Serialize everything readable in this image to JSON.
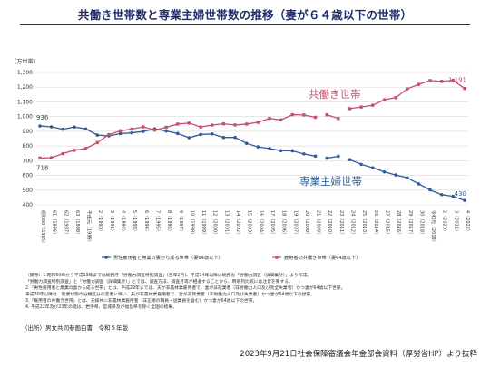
{
  "page": {
    "title": "共働き世帯数と専業主婦世帯数の推移（妻が６４歳以下の世帯）",
    "notes": [
      "（備考）1.昭和60年から平成13年までは総務庁「労働力調査特別調査」(各年2月)、平成14年以降は総務省「労働力調査（詳細集計）」より作成。",
      "「労働力調査特別調査」と「労働力調査（詳細集計）」とでは、調査方法、調査月等が相違することから、時系列比較には注意を要する。",
      "2.「男性雇用者と無業の妻から成る世帯」とは、平成29年までは、夫が非農林業雇用者で、妻が非就業者（非労働力人口及び完全失業者）かつ妻が64歳以下世帯。",
      "平成30年以降は、就業状態の分類区分の変更に伴い、夫が非農林業雇用者で、妻が非就業者（非労働力人口及び失業者）かつ妻が64歳以下の世帯。",
      "3.「雇用者の共働き世帯」とは、夫婦共に非農林業雇用者（非正規の職員・従業員を含む）かつ妻が64歳以下の世帯。",
      "4. 平成22年及び23年の値は、岩手県、宮城県及び福島県を除く全国の結果。"
    ],
    "source": "（出所）男女共同参画白書　令和５年版",
    "footer": "2023年9月21日社会保障審議会年金部会資料（厚労省HP）より抜粋"
  },
  "chart_data": {
    "type": "line",
    "unit_label": "（万世帯）",
    "ylim": [
      400,
      1300
    ],
    "yticks": [
      400,
      500,
      600,
      700,
      800,
      900,
      1000,
      1100,
      1200,
      1300
    ],
    "grid": true,
    "legend_position": "bottom",
    "categories": [
      "昭和60（1985）",
      "61（1986）",
      "62（1987）",
      "63（1988）",
      "平成元（1989）",
      "2（1990）",
      "3（1991）",
      "4（1992）",
      "5（1993）",
      "6（1994）",
      "7（1995）",
      "8（1996）",
      "9（1997）",
      "10（1998）",
      "11（1999）",
      "12（2000）",
      "13（2001）",
      "14（2002）",
      "15（2003）",
      "16（2004）",
      "17（2005）",
      "18（2006）",
      "19（2007）",
      "20（2008）",
      "21（2009）",
      "22（2010）",
      "23（2011）",
      "24（2012）",
      "25（2013）",
      "26（2014）",
      "27（2015）",
      "28（2016）",
      "29（2017）",
      "30（2018）",
      "令和元（2019）",
      "2（2020）",
      "3（2021）",
      "4（2022）"
    ],
    "series": [
      {
        "name": "男性雇用者と無業の妻から成る世帯（妻64歳以下）",
        "short_label": "専業主婦世帯",
        "color": "#2e5c9c",
        "marker": "circle",
        "values": [
          936,
          930,
          914,
          929,
          916,
          874,
          869,
          884,
          889,
          899,
          917,
          902,
          885,
          856,
          878,
          882,
          858,
          858,
          818,
          794,
          783,
          768,
          767,
          746,
          731,
          717,
          730,
          707,
          675,
          652,
          624,
          603,
          584,
          542,
          501,
          469,
          458,
          430
        ],
        "gaps_after": [
          24,
          26
        ],
        "first_value_label": "936",
        "last_value_label": "430"
      },
      {
        "name": "雇用者の共働き世帯（妻64歳以下）",
        "short_label": "共働き世帯",
        "color": "#c8506e",
        "marker": "square",
        "values": [
          718,
          720,
          748,
          771,
          783,
          823,
          877,
          903,
          915,
          930,
          908,
          927,
          949,
          956,
          929,
          942,
          951,
          943,
          949,
          961,
          988,
          977,
          1013,
          1011,
          995,
          1012,
          987,
          1054,
          1065,
          1077,
          1114,
          1129,
          1188,
          1219,
          1245,
          1240,
          1247,
          1191
        ],
        "gaps_after": [
          24,
          26
        ],
        "first_value_label": "718",
        "last_value_label": "1,191"
      }
    ]
  }
}
